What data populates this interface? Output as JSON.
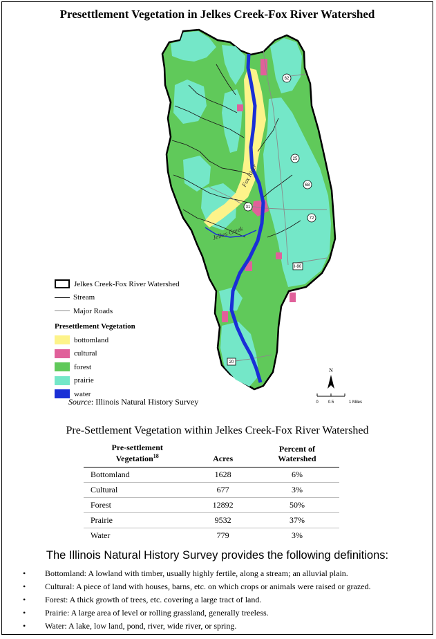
{
  "title": "Presettlement Vegetation in Jelkes Creek-Fox River Watershed",
  "map_labels": {
    "river": "Fox River",
    "creek": "Jelkes Creek",
    "roads": [
      "62",
      "25",
      "68",
      "31",
      "72",
      "I-90",
      "20"
    ]
  },
  "legend": {
    "boundary": "Jelkes Creek-Fox River Watershed",
    "stream": "Stream",
    "roads": "Major Roads",
    "heading": "Presettlement Vegetation",
    "classes": [
      {
        "label": "bottomland",
        "color": "#fdf38a"
      },
      {
        "label": "cultural",
        "color": "#e0609a"
      },
      {
        "label": "forest",
        "color": "#60c95a"
      },
      {
        "label": "prairie",
        "color": "#74e7c8"
      },
      {
        "label": "water",
        "color": "#1a2fd6"
      }
    ]
  },
  "source": {
    "label": "Source",
    "text": ": Illinois Natural History Survey"
  },
  "north_arrow": {
    "letter": "N",
    "scale_ticks": [
      "0",
      "0.5",
      "1 Miles"
    ]
  },
  "table": {
    "title": "Pre-Settlement Vegetation within Jelkes Creek-Fox River Watershed",
    "headers": {
      "vegetation_line1": "Pre-settlement",
      "vegetation_line2": "Vegetation",
      "vegetation_note": "18",
      "acres": "Acres",
      "percent_line1": "Percent of",
      "percent_line2": "Watershed"
    },
    "rows": [
      {
        "name": "Bottomland",
        "acres": "1628",
        "percent": "6%"
      },
      {
        "name": "Cultural",
        "acres": "677",
        "percent": "3%"
      },
      {
        "name": "Forest",
        "acres": "12892",
        "percent": "50%"
      },
      {
        "name": "Prairie",
        "acres": "9532",
        "percent": "37%"
      },
      {
        "name": "Water",
        "acres": "779",
        "percent": "3%"
      }
    ]
  },
  "definitions_heading": "The Illinois Natural History Survey provides the following definitions:",
  "definitions": [
    "Bottomland:  A lowland with timber, usually highly fertile, along a stream; an alluvial plain.",
    "Cultural:  A piece of land with houses, barns, etc. on which crops or animals were raised or grazed.",
    "Forest:  A thick growth of trees, etc. covering a large tract of land.",
    "Prairie:  A large area of level or rolling grassland, generally treeless.",
    "Water:  A lake, low land, pond, river, wide river, or spring."
  ]
}
